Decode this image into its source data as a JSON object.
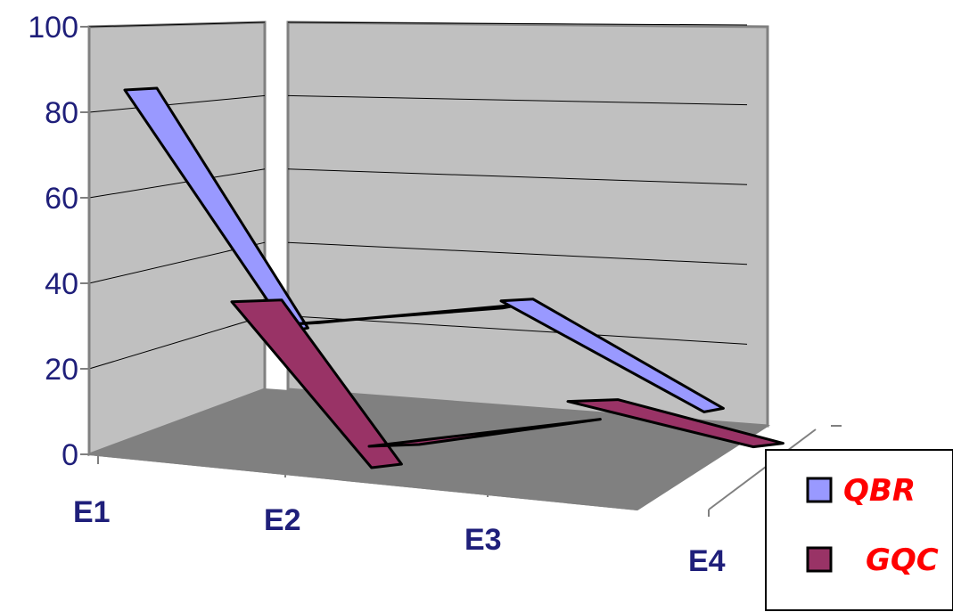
{
  "chart_data": {
    "type": "line",
    "style": "3d-ribbon",
    "categories": [
      "E1",
      "E2",
      "E3",
      "E4"
    ],
    "y_ticks": [
      "0",
      "20",
      "40",
      "60",
      "80",
      "100"
    ],
    "ylim": [
      0,
      100
    ],
    "grid": true,
    "legend": "bottom-right",
    "series": [
      {
        "name": "QBR",
        "values": [
          90,
          31,
          24,
          2
        ],
        "color": "#9999ff"
      },
      {
        "name": "GQC",
        "values": [
          34,
          20,
          18,
          13
        ],
        "color": "#993366"
      }
    ],
    "colors": {
      "walls": "#c0c0c0",
      "floor": "#808080",
      "text": "#1f1f7a",
      "legend_text": "#ff0000"
    }
  }
}
